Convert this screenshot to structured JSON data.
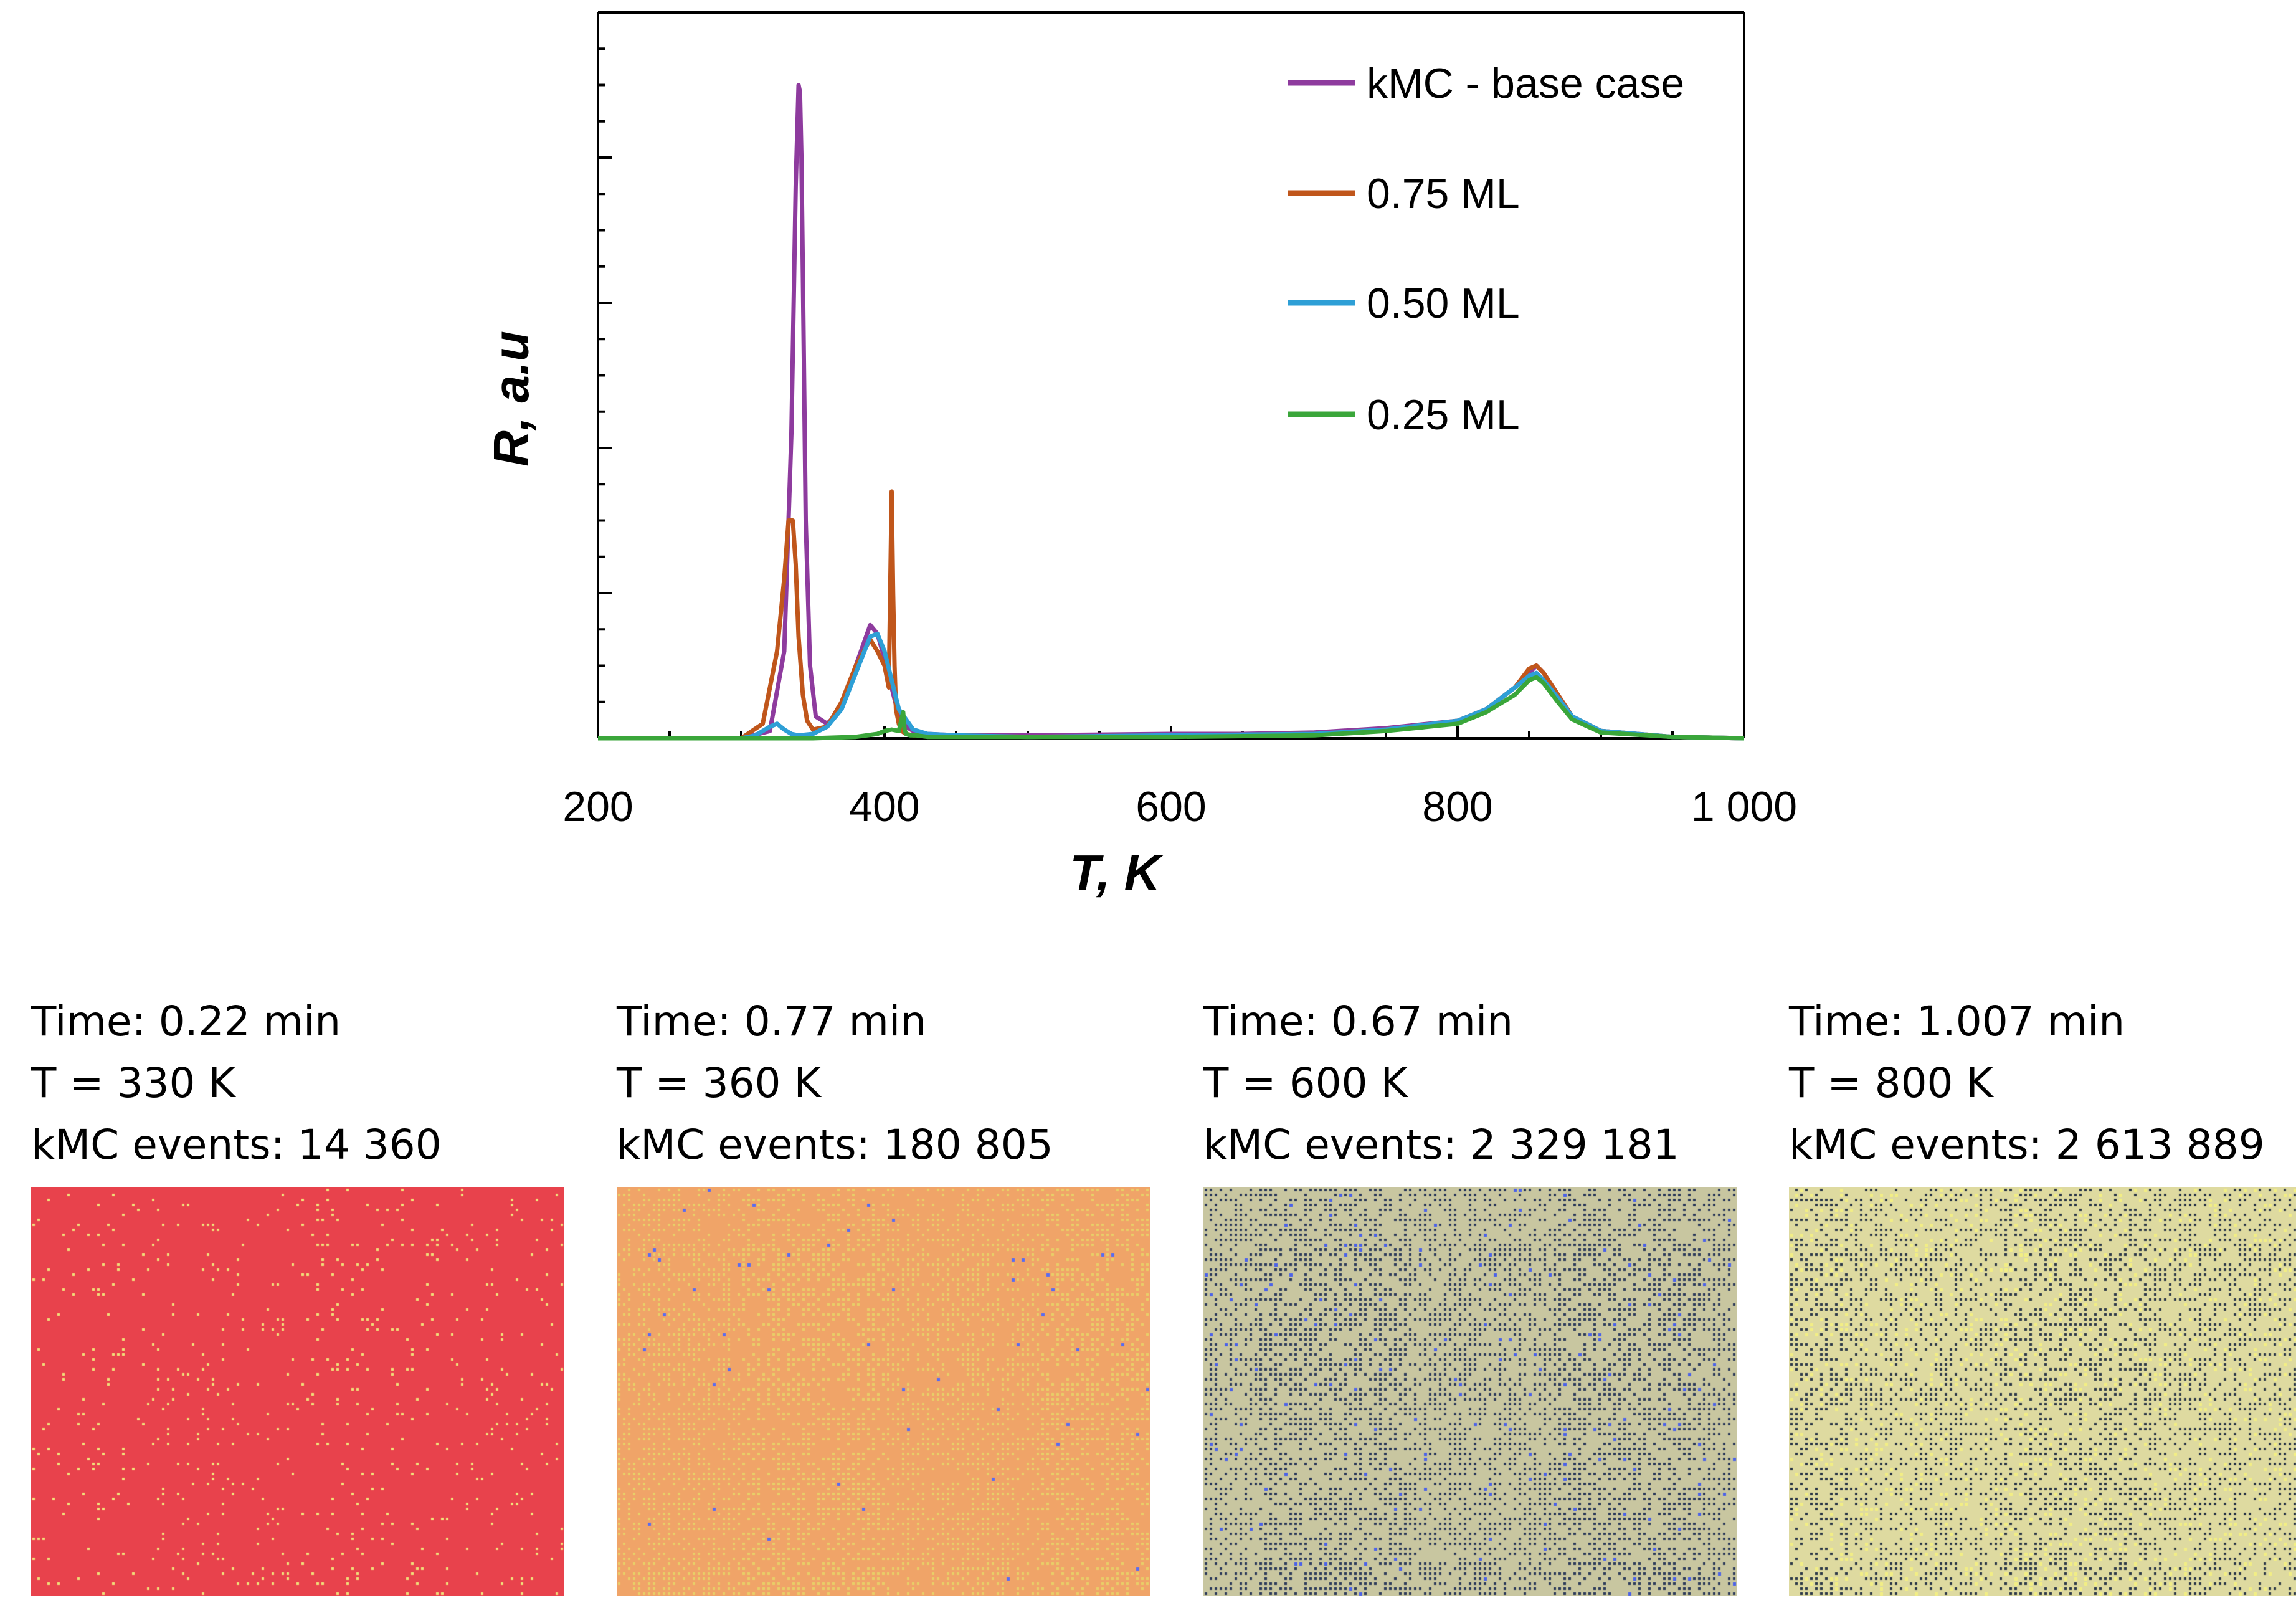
{
  "chart_data": {
    "type": "line",
    "title": "",
    "xlabel": "T, K",
    "ylabel": "R, a.u",
    "xlim": [
      200,
      1000
    ],
    "ylim": [
      0,
      5
    ],
    "xticks": [
      200,
      400,
      600,
      800,
      1000
    ],
    "xtick_labels": [
      "200",
      "400",
      "600",
      "800",
      "1 000"
    ],
    "yticks": [
      0,
      1,
      2,
      3,
      4,
      5
    ],
    "legend_position": "top-right",
    "series": [
      {
        "name": "kMC - base case",
        "color": "#8e3b9e",
        "x": [
          200,
          300,
          320,
          330,
          335,
          338,
          340,
          341,
          342,
          343,
          345,
          348,
          352,
          360,
          370,
          380,
          390,
          395,
          400,
          405,
          410,
          415,
          420,
          430,
          450,
          500,
          600,
          650,
          700,
          750,
          800,
          820,
          840,
          850,
          855,
          860,
          870,
          880,
          900,
          950,
          1000
        ],
        "y": [
          0,
          0,
          0.05,
          0.6,
          2.1,
          3.8,
          4.5,
          4.45,
          4.0,
          3.2,
          1.5,
          0.5,
          0.15,
          0.1,
          0.2,
          0.5,
          0.78,
          0.72,
          0.55,
          0.35,
          0.15,
          0.08,
          0.05,
          0.03,
          0.02,
          0.02,
          0.03,
          0.03,
          0.04,
          0.07,
          0.12,
          0.2,
          0.35,
          0.45,
          0.5,
          0.45,
          0.3,
          0.15,
          0.05,
          0.01,
          0
        ]
      },
      {
        "name": "0.75 ML",
        "color": "#c0561b",
        "x": [
          200,
          300,
          315,
          325,
          330,
          333,
          336,
          338,
          340,
          343,
          346,
          350,
          360,
          370,
          380,
          390,
          395,
          400,
          403,
          405,
          406,
          407,
          408,
          410,
          412,
          415,
          420,
          430,
          450,
          500,
          600,
          700,
          750,
          800,
          820,
          840,
          850,
          855,
          860,
          870,
          880,
          900,
          950,
          1000
        ],
        "y": [
          0,
          0,
          0.1,
          0.6,
          1.1,
          1.5,
          1.5,
          1.2,
          0.7,
          0.3,
          0.12,
          0.06,
          0.08,
          0.25,
          0.5,
          0.68,
          0.6,
          0.5,
          0.35,
          1.7,
          1.0,
          0.5,
          0.2,
          0.1,
          0.05,
          0.03,
          0.02,
          0.02,
          0.02,
          0.01,
          0.02,
          0.03,
          0.06,
          0.12,
          0.2,
          0.35,
          0.48,
          0.5,
          0.45,
          0.3,
          0.15,
          0.05,
          0.01,
          0
        ]
      },
      {
        "name": "0.50 ML",
        "color": "#2e9fd6",
        "x": [
          200,
          300,
          310,
          320,
          325,
          330,
          335,
          340,
          350,
          360,
          370,
          380,
          390,
          395,
          400,
          405,
          410,
          420,
          430,
          450,
          500,
          600,
          700,
          750,
          800,
          820,
          840,
          850,
          855,
          860,
          870,
          880,
          900,
          950,
          1000
        ],
        "y": [
          0,
          0,
          0.02,
          0.08,
          0.1,
          0.06,
          0.03,
          0.02,
          0.03,
          0.08,
          0.2,
          0.45,
          0.7,
          0.72,
          0.6,
          0.4,
          0.2,
          0.06,
          0.03,
          0.02,
          0.01,
          0.02,
          0.03,
          0.06,
          0.12,
          0.2,
          0.35,
          0.43,
          0.45,
          0.4,
          0.28,
          0.15,
          0.05,
          0.01,
          0
        ]
      },
      {
        "name": "0.25 ML",
        "color": "#3aa63a",
        "x": [
          200,
          300,
          350,
          380,
          395,
          400,
          405,
          410,
          413,
          414,
          415,
          418,
          422,
          430,
          450,
          500,
          600,
          700,
          750,
          800,
          820,
          840,
          850,
          855,
          860,
          870,
          880,
          900,
          950,
          1000
        ],
        "y": [
          0,
          0,
          0,
          0.01,
          0.03,
          0.05,
          0.06,
          0.05,
          0.18,
          0.06,
          0.03,
          0.02,
          0.02,
          0.01,
          0.01,
          0.01,
          0.01,
          0.02,
          0.05,
          0.1,
          0.18,
          0.3,
          0.4,
          0.42,
          0.38,
          0.25,
          0.13,
          0.04,
          0.01,
          0
        ]
      }
    ]
  },
  "snapshots": [
    {
      "time": "Time: 0.22 min",
      "temp": "T = 330 K",
      "events": "kMC events: 14 360",
      "base": "#e8424c",
      "dot1": "#f0e07a",
      "dot2": "#e8e090",
      "p1": 0.07,
      "p2": 0.0
    },
    {
      "time": "Time: 0.77 min",
      "temp": "T = 360 K",
      "events": "kMC events: 180 805",
      "base": "#f0a468",
      "dot1": "#e8cf68",
      "dot2": "#5a6cf0",
      "p1": 0.45,
      "p2": 0.006
    },
    {
      "time": "Time: 0.67 min",
      "temp": "T = 600 K",
      "events": "kMC events: 2 329 181",
      "base": "#c8c6a0",
      "dot1": "#2c3a5a",
      "dot2": "#4b62e8",
      "p1": 0.5,
      "p2": 0.02
    },
    {
      "time": "Time: 1.007 min",
      "temp": "T = 800 K",
      "events": "kMC events: 2 613 889",
      "base": "#dedaa0",
      "dot1": "#2c3848",
      "dot2": "#f2ee84",
      "p1": 0.4,
      "p2": 0.12
    }
  ]
}
